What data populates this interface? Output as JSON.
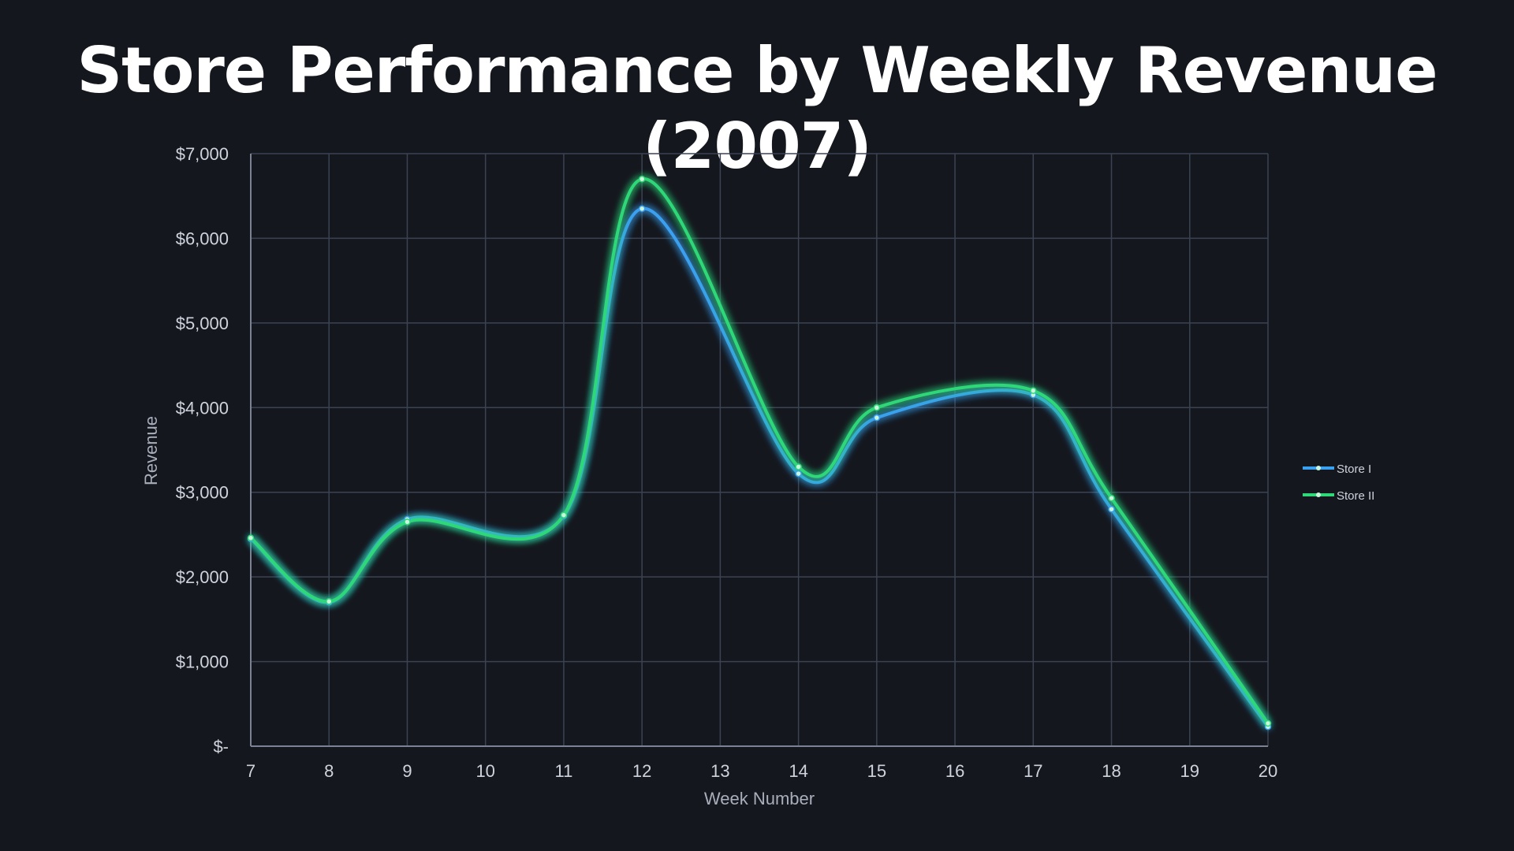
{
  "chart_data": {
    "type": "line",
    "title": "Store Performance by Weekly Revenue (2007)",
    "xlabel": "Week Number",
    "ylabel": "Revenue",
    "x": [
      7,
      8,
      9,
      10,
      11,
      12,
      13,
      14,
      15,
      16,
      17,
      18,
      19,
      20
    ],
    "ylim": [
      0,
      7000
    ],
    "yticks": [
      0,
      1000,
      2000,
      3000,
      4000,
      5000,
      6000,
      7000
    ],
    "ytick_labels": [
      "$-",
      "$1,000",
      "$2,000",
      "$3,000",
      "$4,000",
      "$5,000",
      "$6,000",
      "$7,000"
    ],
    "grid": true,
    "legend_position": "right",
    "smooth": true,
    "series": [
      {
        "name": "Store I",
        "color": "#3aa0f0",
        "values": [
          2450,
          1700,
          2680,
          null,
          2720,
          6350,
          null,
          3220,
          3880,
          null,
          4150,
          2800,
          null,
          230
        ]
      },
      {
        "name": "Store II",
        "color": "#2fd879",
        "values": [
          2460,
          1710,
          2650,
          null,
          2730,
          6700,
          null,
          3300,
          4000,
          null,
          4200,
          2930,
          null,
          270
        ]
      }
    ]
  }
}
